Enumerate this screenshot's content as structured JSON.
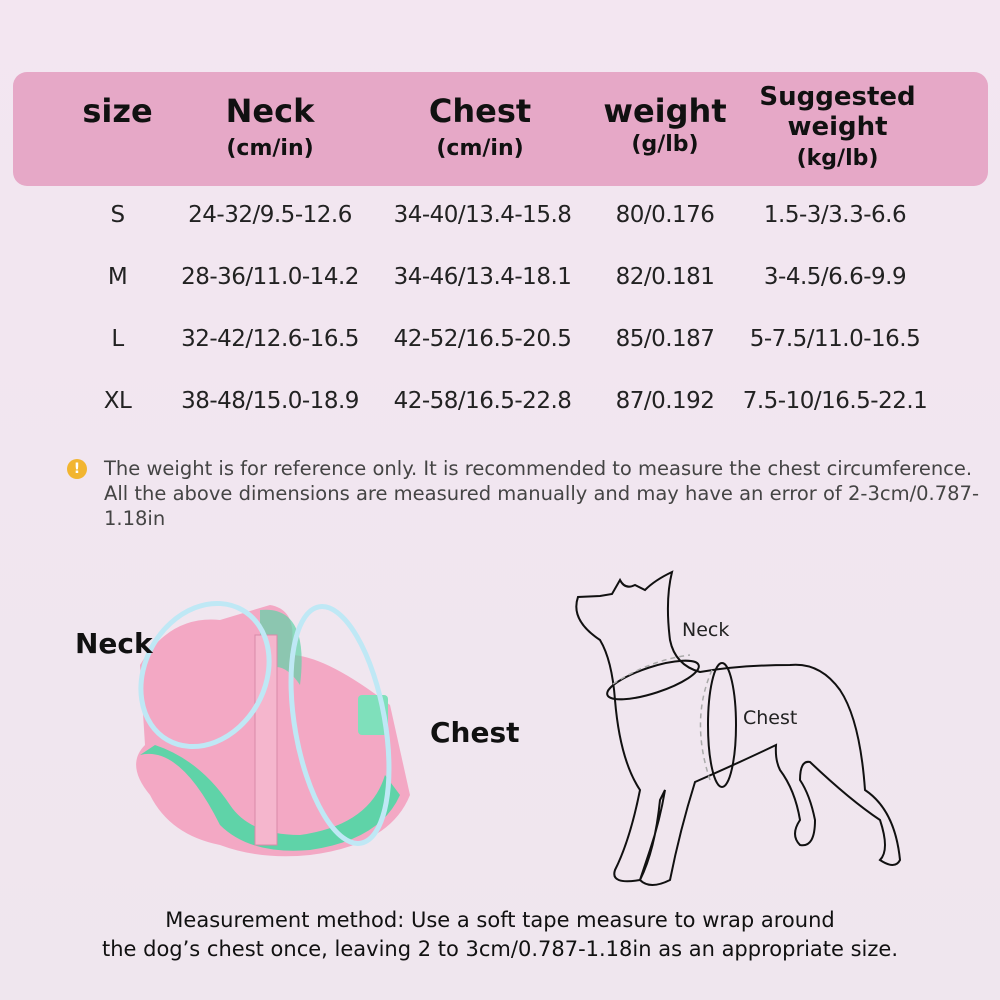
{
  "header": {
    "size": "size",
    "neck": {
      "title": "Neck",
      "unit": "(cm/in)"
    },
    "chest": {
      "title": "Chest",
      "unit": "(cm/in)"
    },
    "weight": {
      "title": "weight",
      "unit": "(g/lb)"
    },
    "suggested": {
      "title1": "Suggested",
      "title2": "weight",
      "unit": "(kg/lb)"
    }
  },
  "rows": [
    {
      "size": "S",
      "neck": "24-32/9.5-12.6",
      "chest": "34-40/13.4-15.8",
      "weight": "80/0.176",
      "suggested": "1.5-3/3.3-6.6"
    },
    {
      "size": "M",
      "neck": "28-36/11.0-14.2",
      "chest": "34-46/13.4-18.1",
      "weight": "82/0.181",
      "suggested": "3-4.5/6.6-9.9"
    },
    {
      "size": "L",
      "neck": "32-42/12.6-16.5",
      "chest": "42-52/16.5-20.5",
      "weight": "85/0.187",
      "suggested": "5-7.5/11.0-16.5"
    },
    {
      "size": "XL",
      "neck": "38-48/15.0-18.9",
      "chest": "42-58/16.5-22.8",
      "weight": "87/0.192",
      "suggested": "7.5-10/16.5-22.1"
    }
  ],
  "note": {
    "icon": "warning-icon",
    "text": "The weight is for reference only. It is recommended to measure the chest circumference. All the above dimensions are measured manually and may have an error of 2-3cm/0.787-1.18in"
  },
  "harness_labels": {
    "neck": "Neck",
    "chest": "Chest"
  },
  "dog_labels": {
    "neck": "Neck",
    "chest": "Chest"
  },
  "footer": {
    "line1": "Measurement method: Use a soft tape measure to wrap around",
    "line2": "the dog’s chest once, leaving 2 to 3cm/0.787-1.18in as an appropriate size."
  },
  "colors": {
    "header": "#e6a8c7",
    "background": "#f1e6ef",
    "harness_pink": "#f0a9c4",
    "harness_green": "#5fd3a8",
    "warning": "#f2b530"
  }
}
